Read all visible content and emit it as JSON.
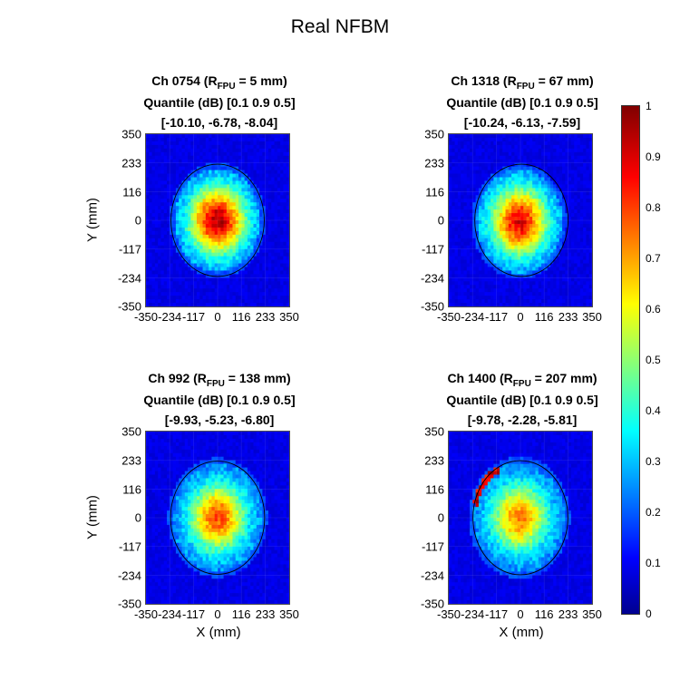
{
  "figure": {
    "title": "Real NFBM"
  },
  "chart_data": {
    "type": "heatmap",
    "title": "Real NFBM",
    "xlabel": "X (mm)",
    "ylabel": "Y (mm)",
    "xlim": [
      -350,
      350
    ],
    "ylim": [
      -350,
      350
    ],
    "xticks": [
      "-350",
      "-234",
      "-117",
      "0",
      "116",
      "233",
      "350"
    ],
    "yticks": [
      "350",
      "233",
      "116",
      "0",
      "-117",
      "-234",
      "-350"
    ],
    "colormap": "jet",
    "clim": [
      0,
      1
    ],
    "colorbar_ticks": [
      "1",
      "0.9",
      "0.8",
      "0.7",
      "0.6",
      "0.5",
      "0.4",
      "0.3",
      "0.2",
      "0.1",
      "0"
    ],
    "panels": [
      {
        "channel_label": "Ch 0754 (R",
        "sub": "FPU",
        "radius_text": " = 5 mm)",
        "quantile_label": "Quantile (dB) [0.1 0.9 0.5]",
        "quantile_values": "[-10.10, -6.78, -8.04]",
        "show_ylabel": true,
        "show_xlabel": false,
        "peak_x": 0,
        "peak_y": 0,
        "peak": 0.95,
        "beam_radius": 225,
        "circle_cx": 0,
        "circle_cy": 0,
        "circle_r": 228
      },
      {
        "channel_label": "Ch 1318 (R",
        "sub": "FPU",
        "radius_text": " = 67 mm)",
        "quantile_label": "Quantile (dB) [0.1 0.9 0.5]",
        "quantile_values": "[-10.24, -6.13, -7.59]",
        "show_ylabel": false,
        "show_xlabel": false,
        "peak_x": -5,
        "peak_y": -5,
        "peak": 0.9,
        "beam_radius": 225,
        "circle_cx": 5,
        "circle_cy": 0,
        "circle_r": 228
      },
      {
        "channel_label": "Ch 992 (R",
        "sub": "FPU",
        "radius_text": " = 138 mm)",
        "quantile_label": "Quantile (dB) [0.1 0.9 0.5]",
        "quantile_values": "[-9.93, -5.23, -6.80]",
        "show_ylabel": true,
        "show_xlabel": true,
        "peak_x": 0,
        "peak_y": 0,
        "peak": 0.8,
        "beam_radius": 235,
        "circle_cx": 0,
        "circle_cy": 0,
        "circle_r": 230
      },
      {
        "channel_label": "Ch 1400 (R",
        "sub": "FPU",
        "radius_text": " = 207 mm)",
        "quantile_label": "Quantile (dB) [0.1 0.9 0.5]",
        "quantile_values": "[-9.78, -2.28, -5.81]",
        "show_ylabel": false,
        "show_xlabel": true,
        "peak_x": -5,
        "peak_y": 0,
        "peak": 0.75,
        "beam_radius": 240,
        "circle_cx": 0,
        "circle_cy": 0,
        "circle_r": 232
      }
    ]
  }
}
